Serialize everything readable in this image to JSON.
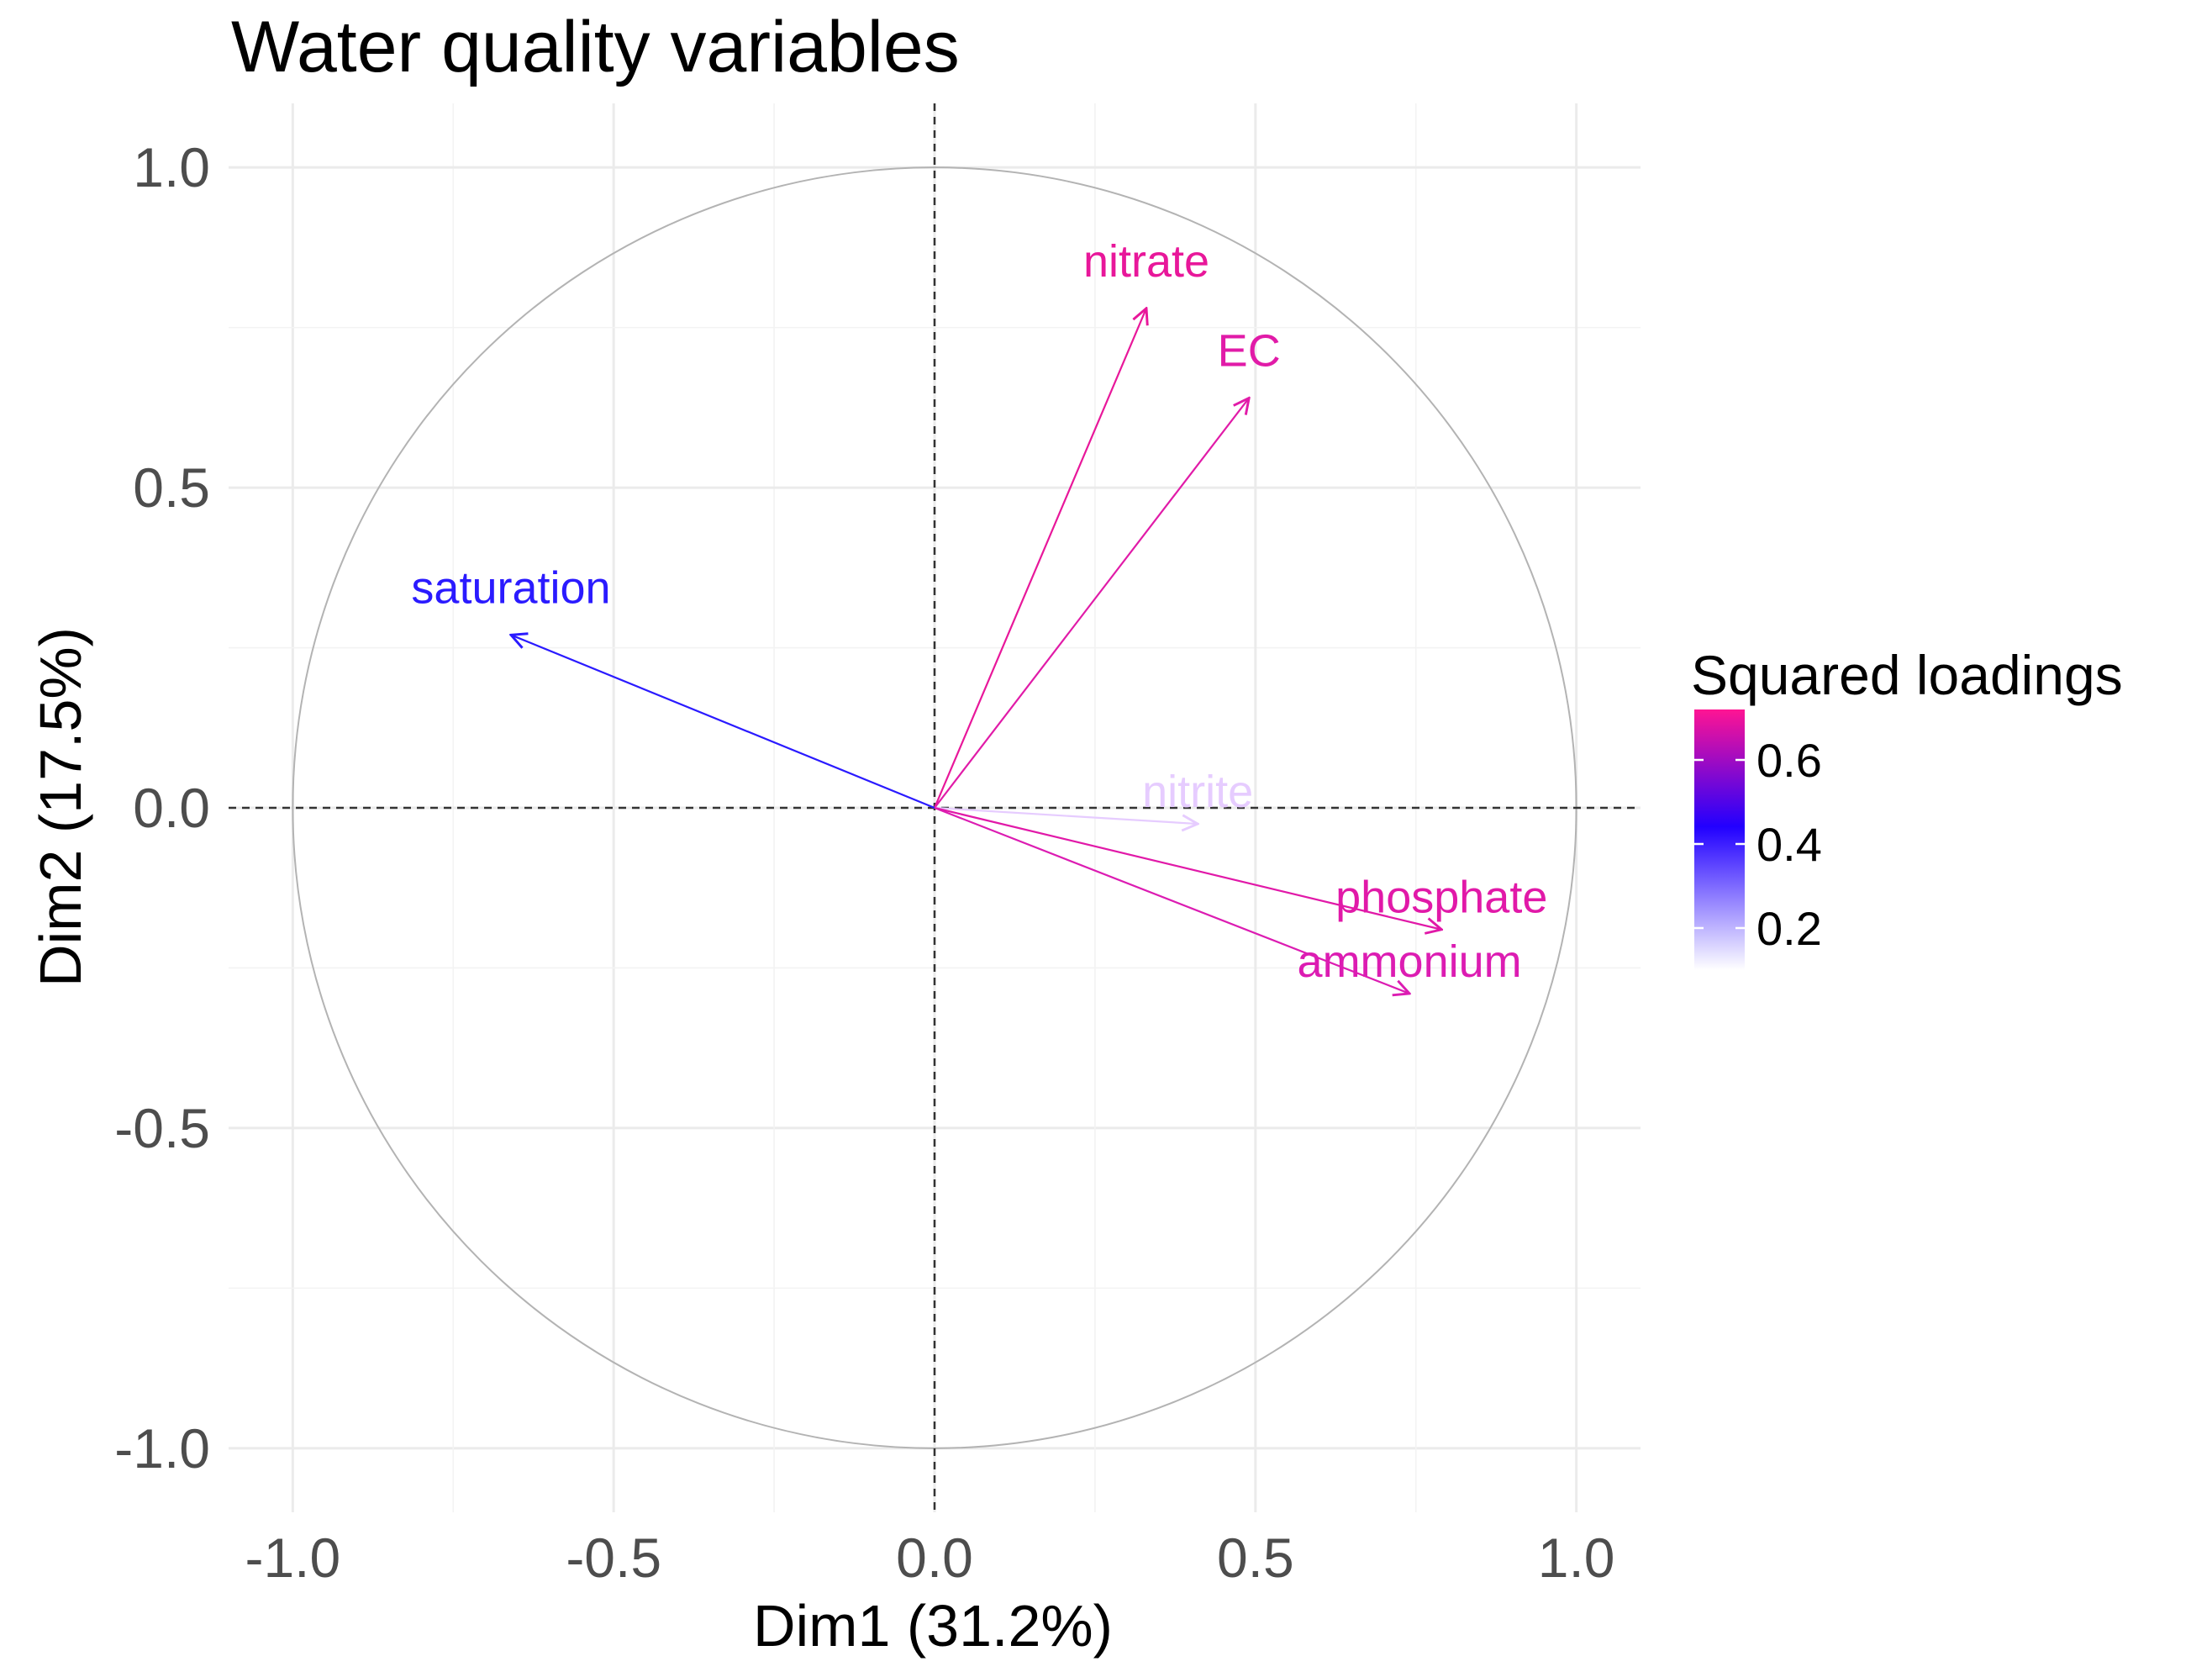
{
  "chart_data": {
    "type": "scatter",
    "subtype": "pca-variable-correlation-circle",
    "title": "Water quality variables",
    "xlabel": "Dim1 (31.2%)",
    "ylabel": "Dim2 (17.5%)",
    "xlim": [
      -1.1,
      1.1
    ],
    "ylim": [
      -1.1,
      1.1
    ],
    "x_ticks": [
      -1.0,
      -0.5,
      0.0,
      0.5,
      1.0
    ],
    "x_tick_labels": [
      "-1.0",
      "-0.5",
      "0.0",
      "0.5",
      "1.0"
    ],
    "y_ticks": [
      -1.0,
      -0.5,
      0.0,
      0.5,
      1.0
    ],
    "y_tick_labels": [
      "-1.0",
      "-0.5",
      "0.0",
      "0.5",
      "1.0"
    ],
    "grid": true,
    "unit_circle": true,
    "variables": [
      {
        "name": "nitrate",
        "x": 0.33,
        "y": 0.78,
        "squared_loading": 0.72,
        "color": "#e8179a"
      },
      {
        "name": "EC",
        "x": 0.49,
        "y": 0.64,
        "squared_loading": 0.65,
        "color": "#e11ba8"
      },
      {
        "name": "saturation",
        "x": -0.66,
        "y": 0.27,
        "squared_loading": 0.51,
        "color": "#2a1aff"
      },
      {
        "name": "nitrite",
        "x": 0.41,
        "y": -0.025,
        "squared_loading": 0.17,
        "color": "#e6ccff"
      },
      {
        "name": "phosphate",
        "x": 0.79,
        "y": -0.19,
        "squared_loading": 0.66,
        "color": "#e119a8"
      },
      {
        "name": "ammonium",
        "x": 0.74,
        "y": -0.29,
        "squared_loading": 0.63,
        "color": "#dc1cb2"
      }
    ],
    "legend": {
      "title": "Squared loadings",
      "position": "right",
      "ticks": [
        0.6,
        0.4,
        0.2
      ],
      "tick_labels": [
        "0.6",
        "0.4",
        "0.2"
      ],
      "range": [
        0.1,
        0.72
      ],
      "gradient": [
        "#ffffff",
        "#2200ff",
        "#ff1493"
      ]
    }
  }
}
